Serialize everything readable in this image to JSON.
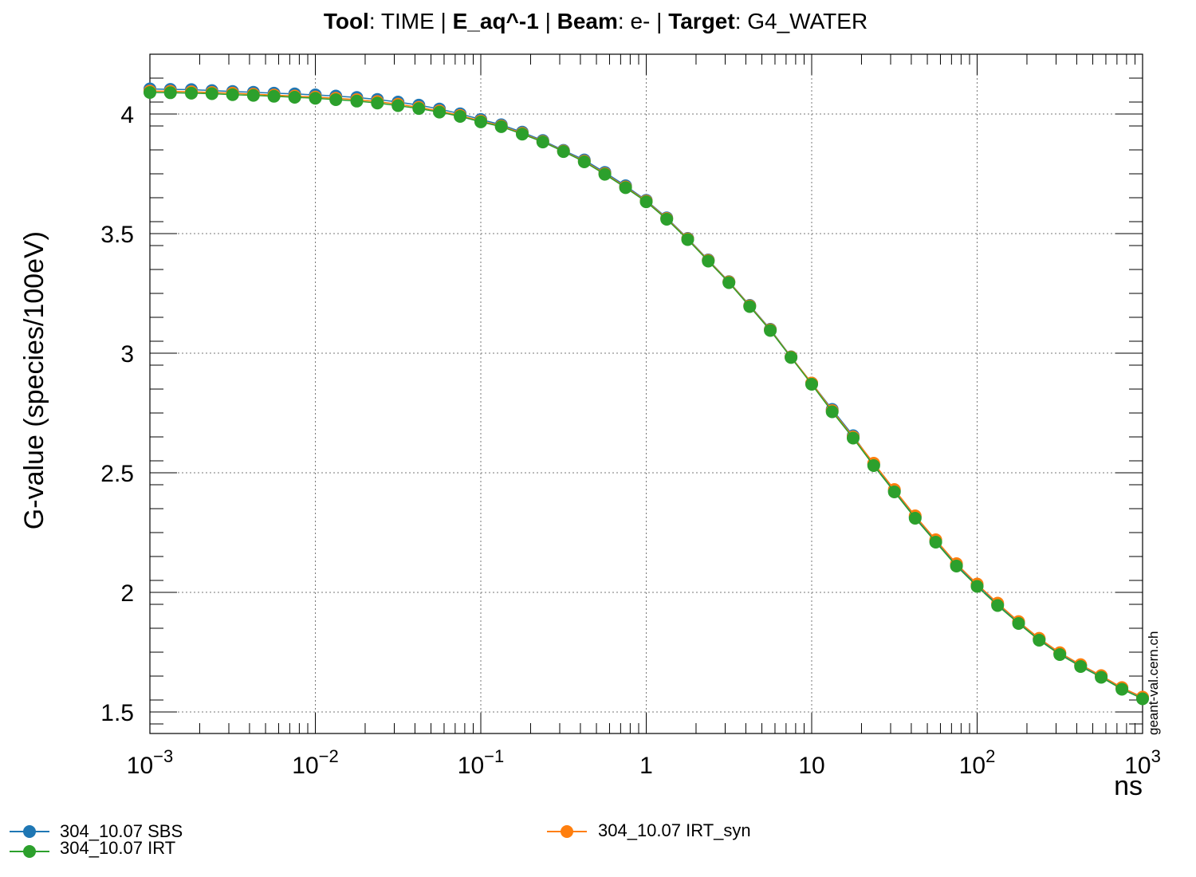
{
  "chart_data": {
    "type": "line",
    "title_parts": {
      "tool_label": "Tool",
      "tool_value": ": TIME | ",
      "species_label": "E_aq^-1",
      "sep1": " | ",
      "beam_label": "Beam",
      "beam_value": ": e- | ",
      "target_label": "Target",
      "target_value": ": G4_WATER"
    },
    "xlabel": "ns",
    "ylabel": "G-value (species/100eV)",
    "xscale": "log",
    "xlim": [
      0.001,
      1000
    ],
    "ylim": [
      1.41,
      4.25
    ],
    "grid": true,
    "watermark": "geant-val.cern.ch",
    "x_ticks": [
      {
        "value": 0.001,
        "base": "10",
        "exp": "−3"
      },
      {
        "value": 0.01,
        "base": "10",
        "exp": "−2"
      },
      {
        "value": 0.1,
        "base": "10",
        "exp": "−1"
      },
      {
        "value": 1,
        "base": "1",
        "exp": ""
      },
      {
        "value": 10,
        "base": "10",
        "exp": ""
      },
      {
        "value": 100,
        "base": "10",
        "exp": "2"
      },
      {
        "value": 1000,
        "base": "10",
        "exp": "3"
      }
    ],
    "y_ticks": [
      {
        "value": 1.5,
        "label": "1.5"
      },
      {
        "value": 2,
        "label": "2"
      },
      {
        "value": 2.5,
        "label": "2.5"
      },
      {
        "value": 3,
        "label": "3"
      },
      {
        "value": 3.5,
        "label": "3.5"
      },
      {
        "value": 4,
        "label": "4"
      }
    ],
    "x": [
      0.001,
      0.00133,
      0.00178,
      0.00237,
      0.00316,
      0.00422,
      0.00562,
      0.0075,
      0.01,
      0.0133,
      0.0178,
      0.0237,
      0.0316,
      0.0422,
      0.0562,
      0.075,
      0.1,
      0.133,
      0.178,
      0.237,
      0.316,
      0.422,
      0.562,
      0.75,
      1.0,
      1.33,
      1.78,
      2.37,
      3.16,
      4.22,
      5.62,
      7.5,
      10.0,
      13.3,
      17.8,
      23.7,
      31.6,
      42.2,
      56.2,
      75.0,
      100,
      133,
      178,
      237,
      316,
      422,
      562,
      750,
      1000
    ],
    "series": [
      {
        "name": "304_10.07 SBS",
        "color": "#1f77b4",
        "values": [
          4.105,
          4.103,
          4.102,
          4.098,
          4.094,
          4.091,
          4.087,
          4.084,
          4.08,
          4.075,
          4.069,
          4.061,
          4.05,
          4.037,
          4.021,
          4.001,
          3.977,
          3.955,
          3.924,
          3.889,
          3.848,
          3.808,
          3.756,
          3.7,
          3.639,
          3.566,
          3.48,
          3.39,
          3.299,
          3.2,
          3.1,
          2.985,
          2.875,
          2.765,
          2.655,
          2.535,
          2.425,
          2.315,
          2.215,
          2.115,
          2.03,
          1.95,
          1.875,
          1.805,
          1.745,
          1.695,
          1.65,
          1.6,
          1.56
        ]
      },
      {
        "name": "304_10.07 IRT",
        "color": "#2ca02c",
        "values": [
          4.09,
          4.089,
          4.087,
          4.085,
          4.081,
          4.078,
          4.074,
          4.07,
          4.066,
          4.06,
          4.054,
          4.046,
          4.035,
          4.023,
          4.008,
          3.99,
          3.967,
          3.947,
          3.916,
          3.883,
          3.843,
          3.8,
          3.748,
          3.692,
          3.633,
          3.56,
          3.475,
          3.385,
          3.295,
          3.195,
          3.095,
          2.982,
          2.87,
          2.755,
          2.645,
          2.53,
          2.42,
          2.31,
          2.21,
          2.11,
          2.025,
          1.945,
          1.87,
          1.8,
          1.74,
          1.69,
          1.645,
          1.595,
          1.555
        ]
      },
      {
        "name": "304_10.07 IRT_syn",
        "color": "#ff7f0e",
        "values": [
          4.096,
          4.095,
          4.093,
          4.09,
          4.087,
          4.083,
          4.079,
          4.075,
          4.071,
          4.066,
          4.06,
          4.052,
          4.041,
          4.028,
          4.013,
          3.994,
          3.971,
          3.95,
          3.919,
          3.885,
          3.845,
          3.803,
          3.751,
          3.695,
          3.636,
          3.563,
          3.478,
          3.388,
          3.298,
          3.198,
          3.098,
          2.984,
          2.875,
          2.76,
          2.65,
          2.54,
          2.43,
          2.32,
          2.22,
          2.12,
          2.035,
          1.955,
          1.878,
          1.808,
          1.748,
          1.698,
          1.652,
          1.602,
          1.562
        ]
      }
    ],
    "legend_placement": "bottom"
  }
}
